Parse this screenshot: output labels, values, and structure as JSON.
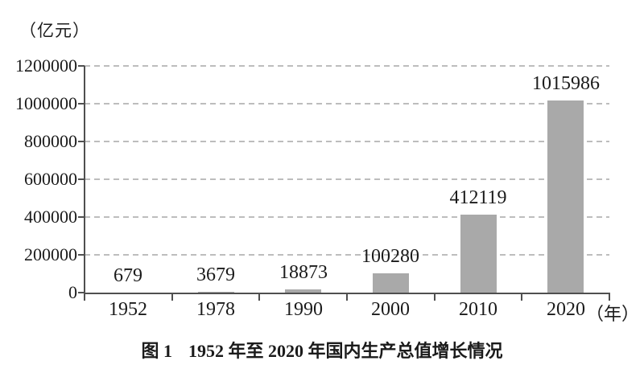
{
  "chart_data": {
    "type": "bar",
    "caption_label": "图 1",
    "caption_text": "1952 年至 2020 年国内生产总值增长情况",
    "y_unit": "（亿元）",
    "x_unit": "（年）",
    "categories": [
      "1952",
      "1978",
      "1990",
      "2000",
      "2010",
      "2020"
    ],
    "values": [
      679,
      3679,
      18873,
      100280,
      412119,
      1015986
    ],
    "value_labels": [
      "679",
      "3679",
      "18873",
      "100280",
      "412119",
      "1015986"
    ],
    "y_ticks": [
      0,
      200000,
      400000,
      600000,
      800000,
      1000000,
      1200000
    ],
    "y_tick_labels": [
      "0",
      "200000",
      "400000",
      "600000",
      "800000",
      "1000000",
      "1200000"
    ],
    "ylim": [
      0,
      1200000
    ],
    "grid": "dashed-horizontal",
    "legend": "none",
    "bar_color": "#a9a9a9",
    "axis_color": "#4f4f4f",
    "gridline_color": "#bdbdbd"
  }
}
